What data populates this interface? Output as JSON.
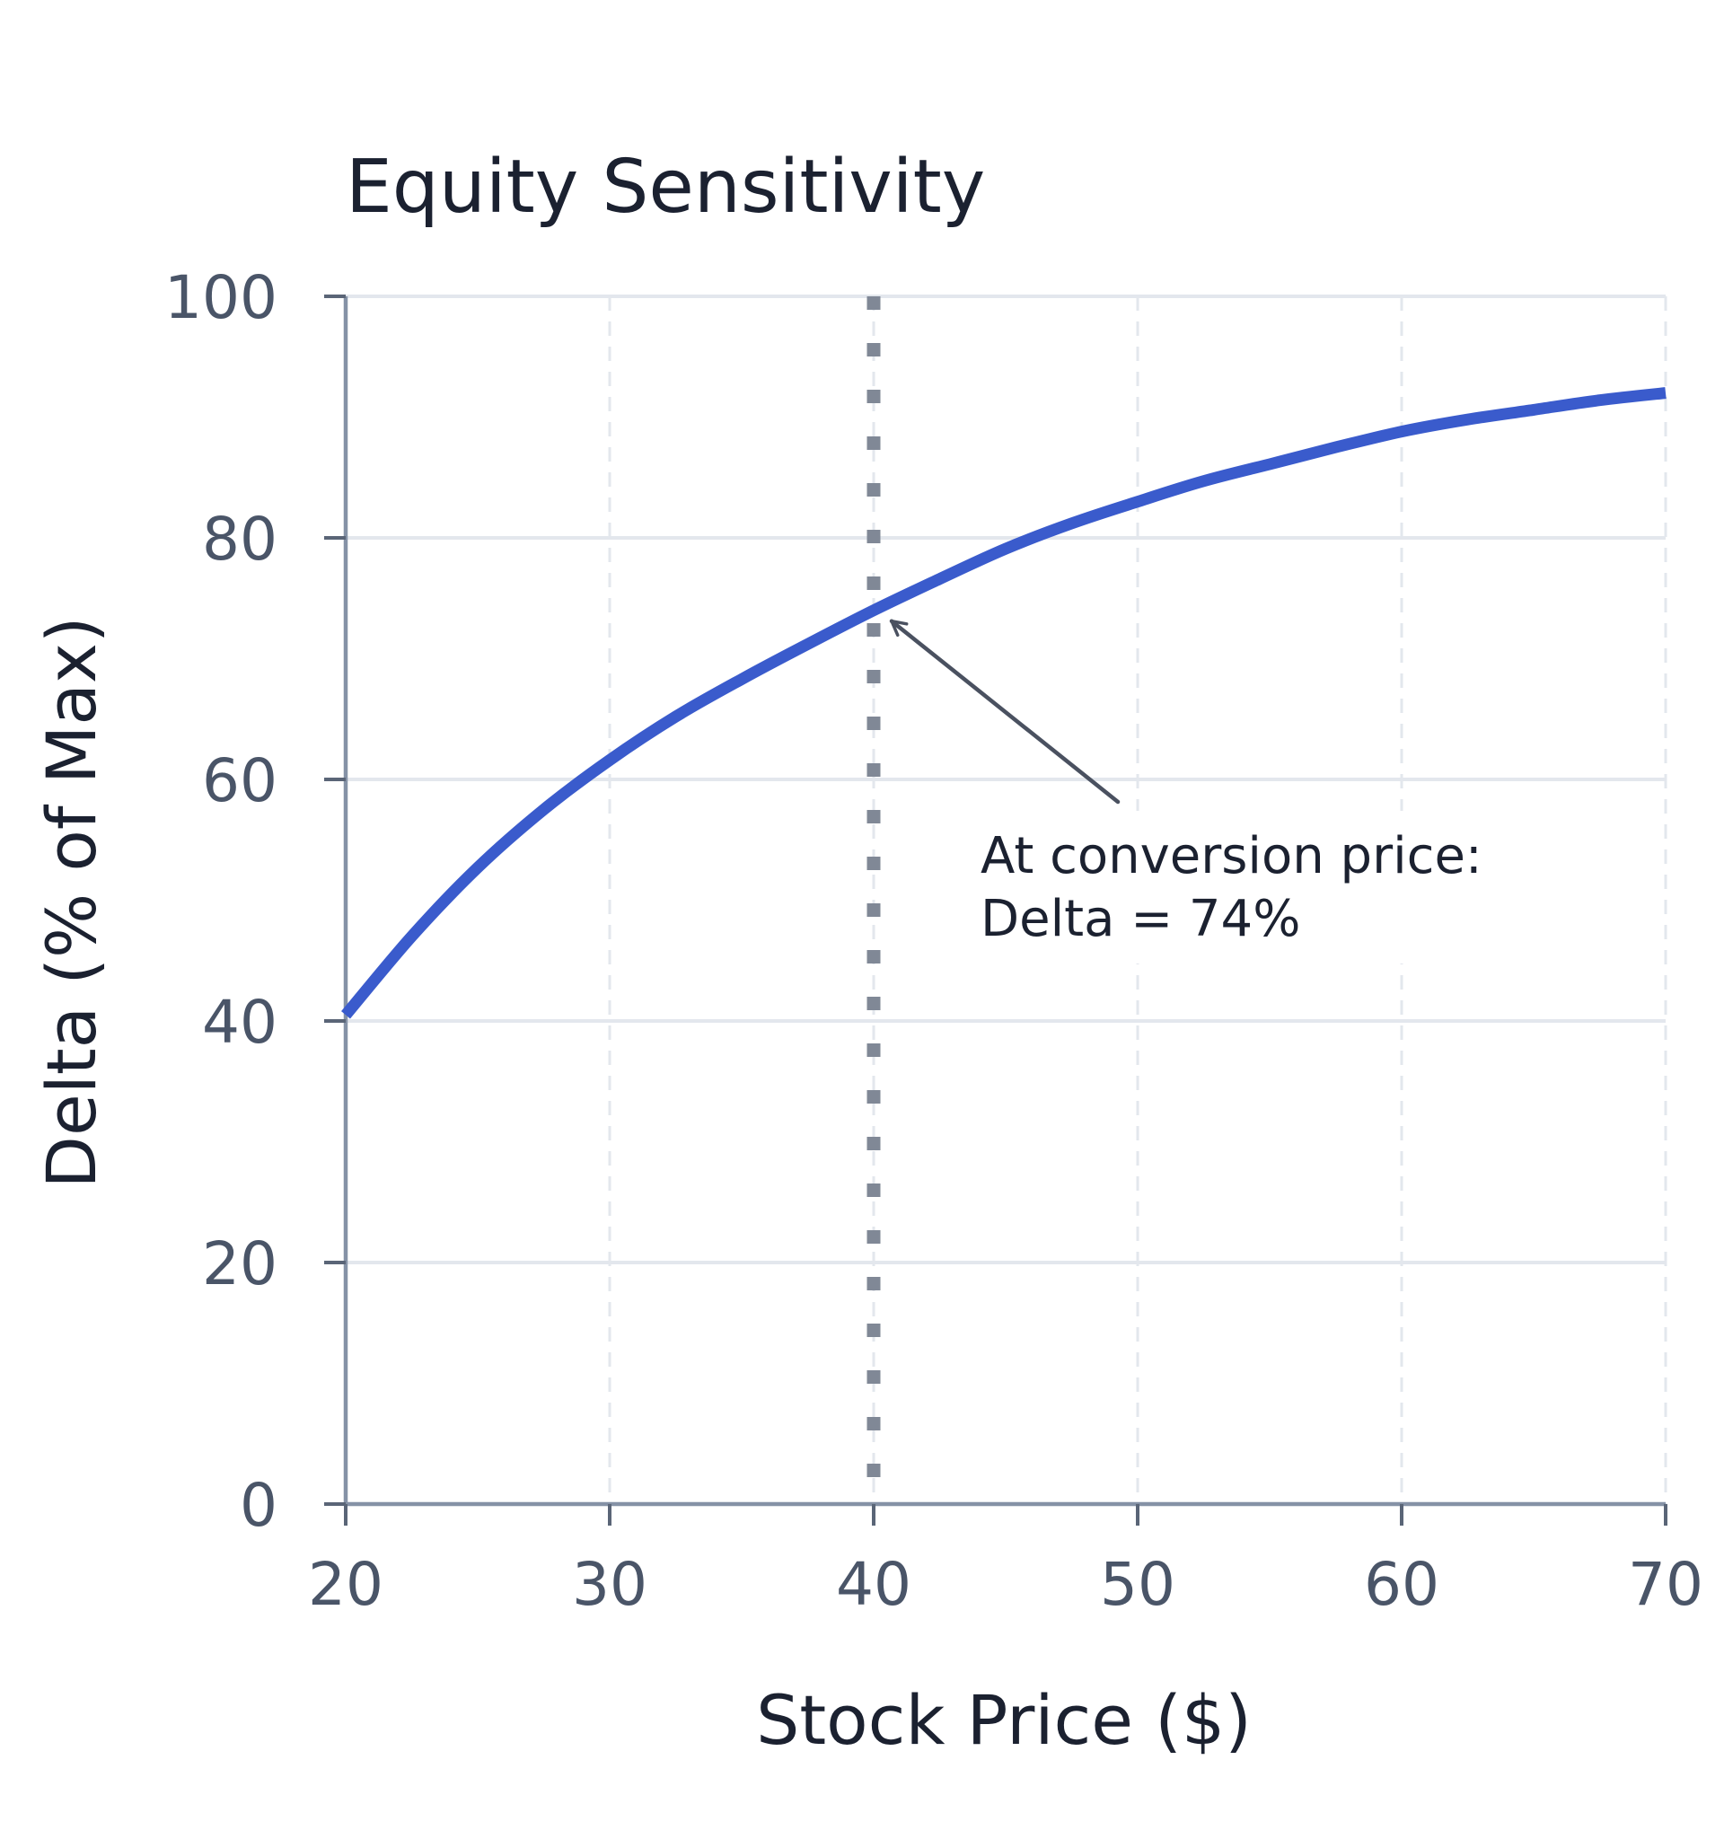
{
  "chart_data": {
    "type": "line",
    "title": "Equity Sensitivity",
    "xlabel": "Stock Price ($)",
    "ylabel": "Delta (% of Max)",
    "xlim": [
      20,
      70
    ],
    "ylim": [
      0,
      100
    ],
    "x_ticks": [
      20,
      30,
      40,
      50,
      60,
      70
    ],
    "y_ticks": [
      0,
      20,
      40,
      60,
      80,
      100
    ],
    "grid": true,
    "series": [
      {
        "color": "#3a5bcc",
        "x": [
          20,
          22.5,
          25,
          27.5,
          30,
          32.5,
          35,
          37.5,
          40,
          42.5,
          45,
          47.5,
          50,
          52.5,
          55,
          57.5,
          60,
          62.5,
          65,
          67.5,
          70
        ],
        "y": [
          40.5,
          47.0,
          52.7,
          57.5,
          61.6,
          65.2,
          68.3,
          71.2,
          74.0,
          76.6,
          79.1,
          81.2,
          83.0,
          84.7,
          86.1,
          87.5,
          88.8,
          89.8,
          90.6,
          91.4,
          92.0
        ]
      }
    ],
    "reference_line": {
      "x": 40,
      "color": "#808896",
      "style": "dotted"
    },
    "annotation": {
      "lines": [
        "At conversion price:",
        "Delta = 74%"
      ],
      "point": {
        "x": 40,
        "y": 74
      }
    }
  }
}
